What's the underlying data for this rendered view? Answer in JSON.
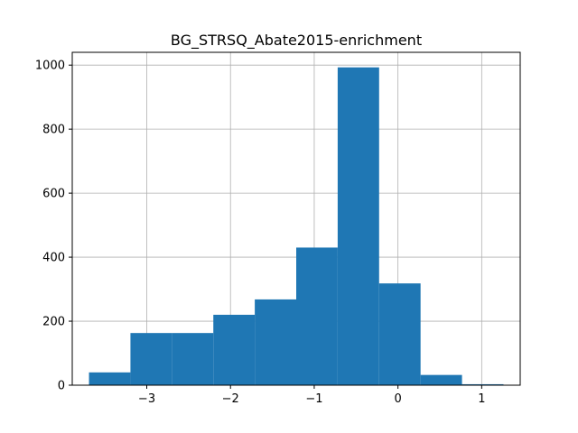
{
  "chart_data": {
    "type": "histogram",
    "title": "BG_STRSQ_Abate2015-enrichment",
    "xlabel": "",
    "ylabel": "",
    "bin_edges": [
      -3.69,
      -3.195,
      -2.7,
      -2.205,
      -1.71,
      -1.215,
      -0.72,
      -0.225,
      0.27,
      0.765,
      1.26
    ],
    "counts": [
      40,
      163,
      163,
      220,
      268,
      430,
      993,
      318,
      32,
      3
    ],
    "xlim": [
      -3.89,
      1.46
    ],
    "ylim": [
      0,
      1040
    ],
    "xticks": [
      -3,
      -2,
      -1,
      0,
      1
    ],
    "xtick_labels": [
      "−3",
      "−2",
      "−1",
      "0",
      "1"
    ],
    "yticks": [
      0,
      200,
      400,
      600,
      800,
      1000
    ],
    "ytick_labels": [
      "0",
      "200",
      "400",
      "600",
      "800",
      "1000"
    ],
    "grid": true,
    "bar_color": "#1f77b4",
    "grid_color": "#b0b0b0"
  }
}
